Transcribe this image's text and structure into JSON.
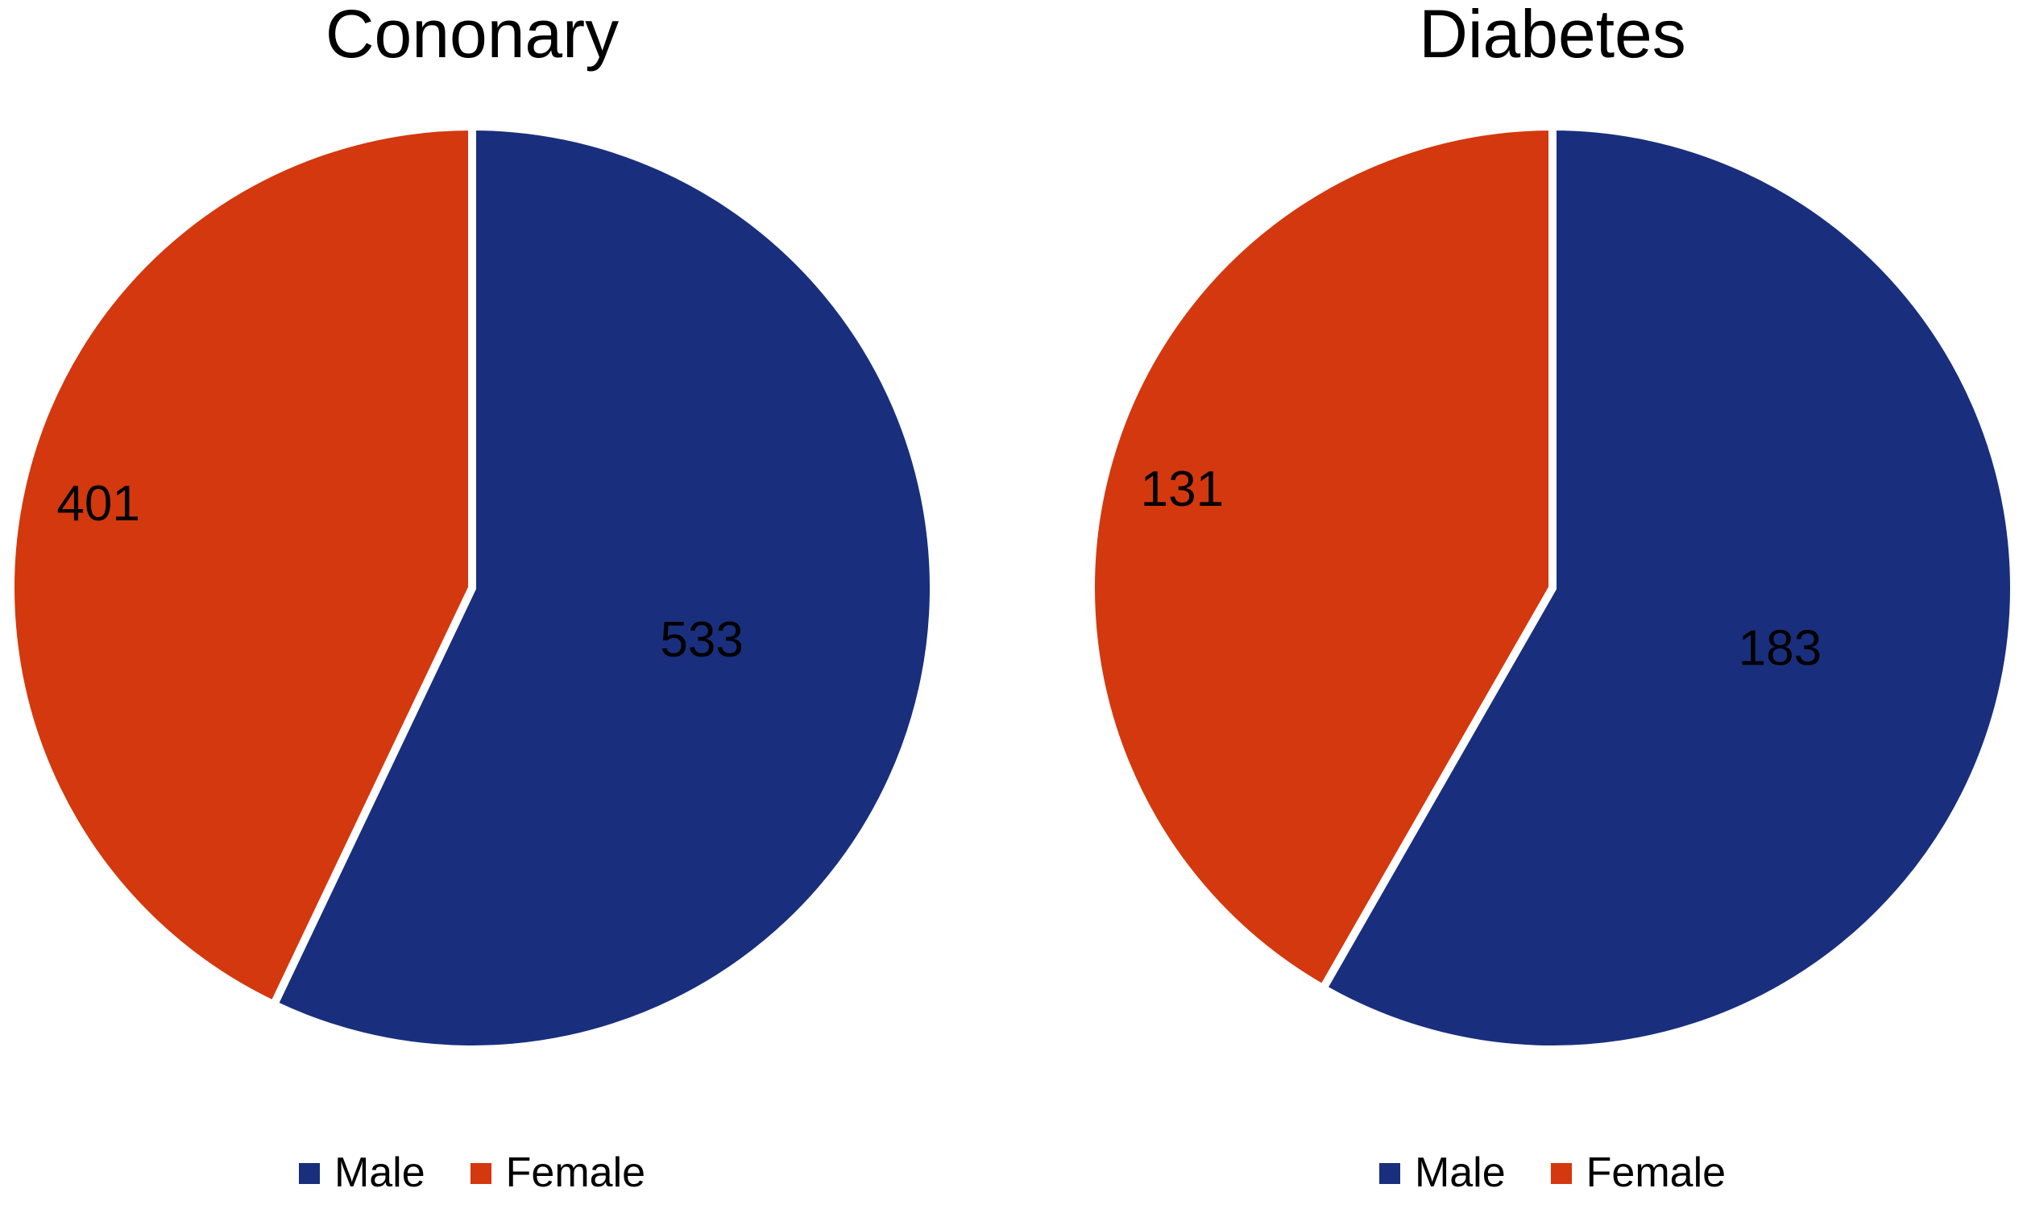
{
  "figure": {
    "background_color": "#ffffff",
    "text_color": "#000000"
  },
  "chart_data": [
    {
      "type": "pie",
      "title": "Cononary",
      "categories": [
        "Male",
        "Female"
      ],
      "values": [
        533,
        401
      ],
      "slices": [
        {
          "label": "Male",
          "value": 533,
          "color": "#192F7D",
          "label_radius": 0.51
        },
        {
          "label": "Female",
          "value": 401,
          "color": "#D3380E",
          "label_radius": 0.83
        }
      ],
      "start_angle_deg": 0,
      "direction": "clockwise",
      "slice_border_color": "#ffffff",
      "slice_border_width": 10,
      "value_label_color": "#000000",
      "legend_position": "bottom"
    },
    {
      "type": "pie",
      "title": "Diabetes",
      "categories": [
        "Male",
        "Female"
      ],
      "values": [
        183,
        131
      ],
      "slices": [
        {
          "label": "Male",
          "value": 183,
          "color": "#192F7D",
          "label_radius": 0.51
        },
        {
          "label": "Female",
          "value": 131,
          "color": "#D3380E",
          "label_radius": 0.83
        }
      ],
      "start_angle_deg": 0,
      "direction": "clockwise",
      "slice_border_color": "#ffffff",
      "slice_border_width": 10,
      "value_label_color": "#000000",
      "legend_position": "bottom"
    }
  ]
}
